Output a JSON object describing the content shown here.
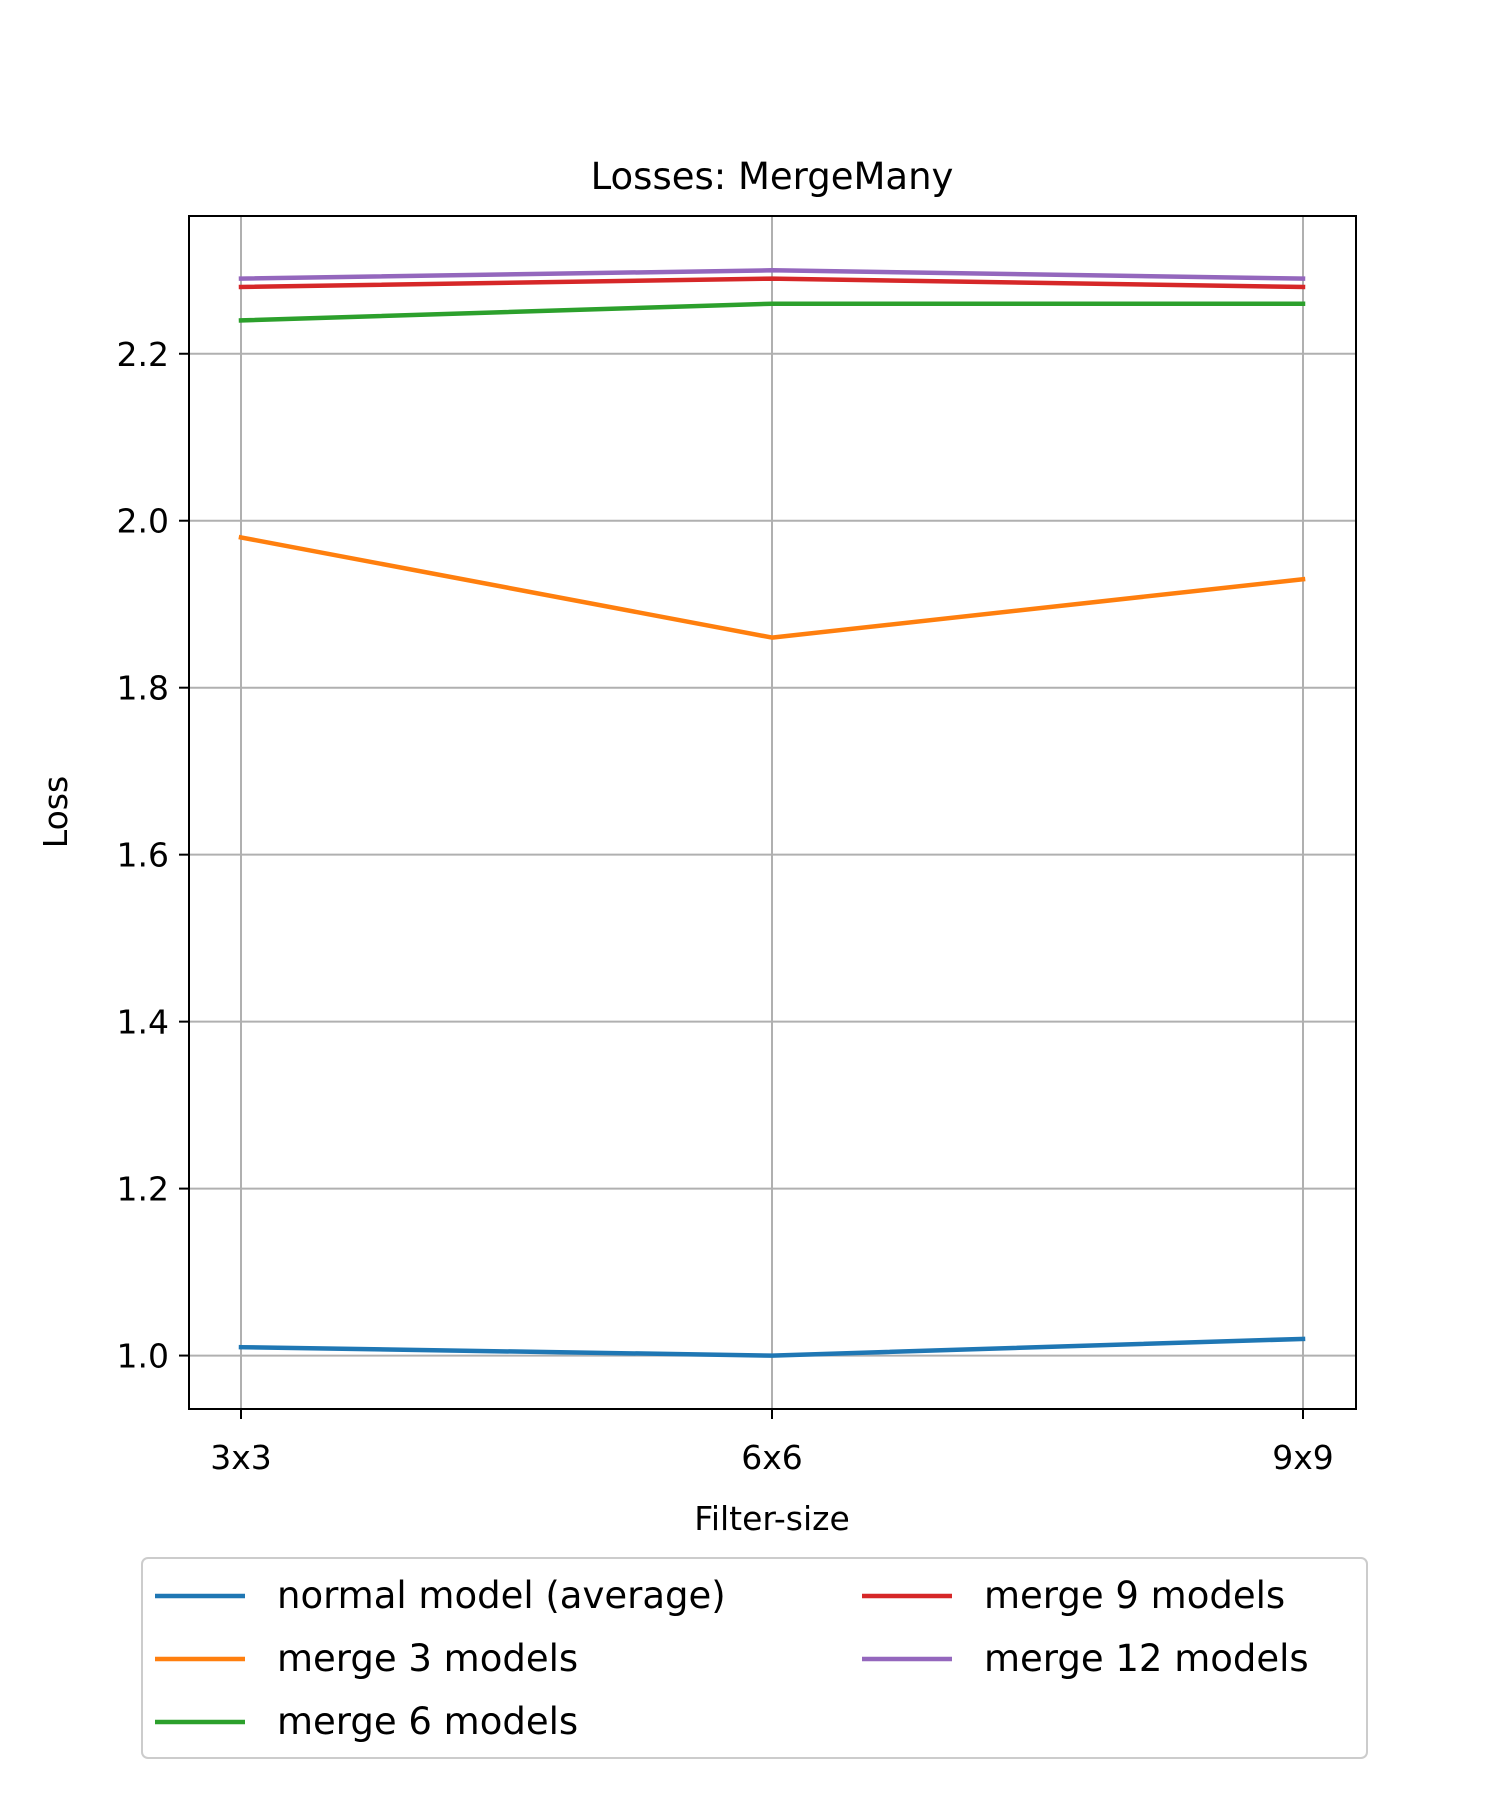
{
  "chart_data": {
    "type": "line",
    "title": "Losses: MergeMany",
    "xlabel": "Filter-size",
    "ylabel": "Loss",
    "categories": [
      "3x3",
      "6x6",
      "9x9"
    ],
    "ylim": [
      0.936,
      2.365
    ],
    "yticks": [
      1.0,
      1.2,
      1.4,
      1.6,
      1.8,
      2.0,
      2.2
    ],
    "grid": true,
    "legend_position": "bottom-center",
    "legend_columns": 2,
    "series": [
      {
        "name": "normal model (average)",
        "color": "#1f77b4",
        "values": [
          1.01,
          1.0,
          1.02
        ]
      },
      {
        "name": "merge 3 models",
        "color": "#ff7f0e",
        "values": [
          1.98,
          1.86,
          1.93
        ]
      },
      {
        "name": "merge 6 models",
        "color": "#2ca02c",
        "values": [
          2.24,
          2.26,
          2.26
        ]
      },
      {
        "name": "merge 9 models",
        "color": "#d62728",
        "values": [
          2.28,
          2.29,
          2.28
        ]
      },
      {
        "name": "merge 12 models",
        "color": "#9467bd",
        "values": [
          2.29,
          2.3,
          2.29
        ]
      }
    ]
  }
}
